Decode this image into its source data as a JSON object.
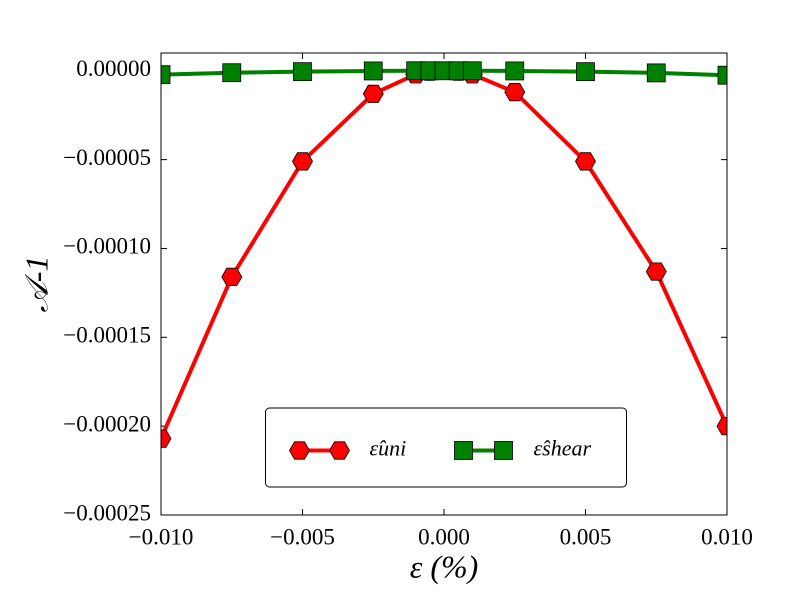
{
  "chart_data": {
    "type": "line",
    "x_label": "ε (%)",
    "y_label": "𝒜-1",
    "x": [
      -0.01,
      -0.0075,
      -0.005,
      -0.0025,
      -0.001,
      -0.0005,
      0,
      0.0005,
      0.001,
      0.0025,
      0.005,
      0.0075,
      0.01
    ],
    "series": [
      {
        "name": "ε̂uni",
        "color": "#ff0000",
        "marker": "hexagon",
        "values": [
          -0.000207,
          -0.000116,
          -5.1e-05,
          -1.3e-05,
          -2e-06,
          -5e-07,
          0,
          -5e-07,
          -2e-06,
          -1.2e-05,
          -5.1e-05,
          -0.000113,
          -0.0002
        ]
      },
      {
        "name": "ε̂shear",
        "color": "#008000",
        "marker": "square",
        "values": [
          -2.2e-06,
          -1.1e-06,
          -5e-07,
          -1e-07,
          0,
          0,
          0,
          0,
          0,
          -1e-07,
          -5e-07,
          -1.2e-06,
          -2.5e-06
        ]
      }
    ],
    "xlim": [
      -0.01,
      0.01
    ],
    "ylim": [
      -0.00025,
      1e-05
    ],
    "xticks": [
      {
        "value": -0.01,
        "label": "−0.010"
      },
      {
        "value": -0.005,
        "label": "−0.005"
      },
      {
        "value": 0,
        "label": "0.000"
      },
      {
        "value": 0.005,
        "label": "0.005"
      },
      {
        "value": 0.01,
        "label": "0.010"
      }
    ],
    "yticks": [
      {
        "value": -0.00025,
        "label": "−0.00025"
      },
      {
        "value": -0.0002,
        "label": "−0.00020"
      },
      {
        "value": -0.00015,
        "label": "−0.00015"
      },
      {
        "value": -0.0001,
        "label": "−0.00010"
      },
      {
        "value": -5e-05,
        "label": "−0.00005"
      },
      {
        "value": 0,
        "label": "0.00000"
      }
    ],
    "legend": "lower center",
    "grid": false
  }
}
